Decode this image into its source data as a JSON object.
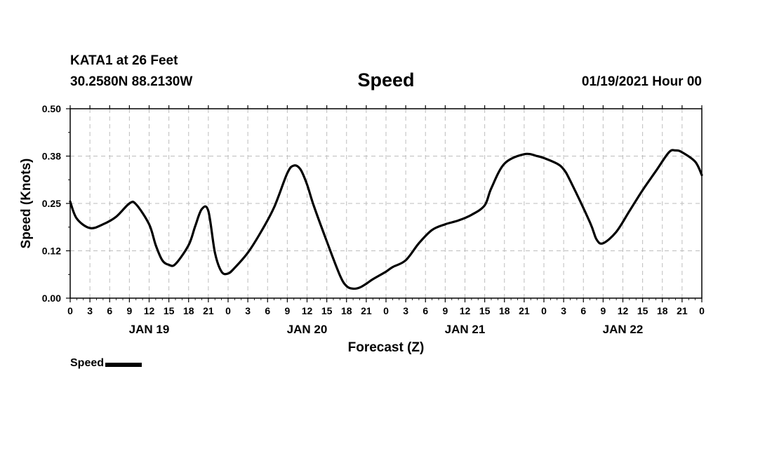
{
  "header": {
    "station": "KATA1 at 26 Feet",
    "coords": "30.2580N 88.2130W",
    "datetime": "01/19/2021 Hour 00"
  },
  "chart_data": {
    "type": "line",
    "title": "Speed",
    "xlabel": "Forecast (Z)",
    "ylabel": "Speed (Knots)",
    "ylim": [
      0,
      0.5
    ],
    "yticks": [
      "0.00",
      "0.12",
      "0.25",
      "0.38",
      "0.50"
    ],
    "xlim_hours": [
      0,
      96
    ],
    "xtick_labels": [
      "0",
      "3",
      "6",
      "9",
      "12",
      "15",
      "18",
      "21",
      "0",
      "3",
      "6",
      "9",
      "12",
      "15",
      "18",
      "21",
      "0",
      "3",
      "6",
      "9",
      "12",
      "15",
      "18",
      "21",
      "0",
      "3",
      "6",
      "9",
      "12",
      "15",
      "18",
      "21",
      "0"
    ],
    "day_labels": [
      "JAN 19",
      "JAN 20",
      "JAN 21",
      "JAN 22"
    ],
    "grid": true,
    "legend": "bottom-left",
    "series": [
      {
        "name": "Speed",
        "color": "#000000",
        "x_hours": [
          0,
          1,
          3,
          5,
          7,
          9,
          10,
          12,
          13,
          14,
          15,
          16,
          18,
          19,
          20,
          21,
          22,
          23,
          24,
          25,
          27,
          29,
          31,
          33,
          34,
          35,
          36,
          37,
          39,
          41,
          42,
          43,
          44,
          45,
          46,
          48,
          49,
          51,
          53,
          55,
          57,
          59,
          61,
          63,
          64,
          66,
          69,
          71,
          72,
          74,
          75,
          76,
          79,
          80,
          81,
          83,
          85,
          87,
          89,
          91,
          92,
          93,
          95,
          96
        ],
        "values": [
          0.255,
          0.21,
          0.185,
          0.195,
          0.215,
          0.25,
          0.248,
          0.195,
          0.14,
          0.1,
          0.088,
          0.09,
          0.14,
          0.19,
          0.235,
          0.23,
          0.12,
          0.07,
          0.065,
          0.08,
          0.12,
          0.175,
          0.24,
          0.33,
          0.35,
          0.34,
          0.3,
          0.245,
          0.15,
          0.06,
          0.032,
          0.025,
          0.028,
          0.038,
          0.05,
          0.07,
          0.082,
          0.1,
          0.145,
          0.18,
          0.195,
          0.205,
          0.22,
          0.245,
          0.29,
          0.355,
          0.38,
          0.375,
          0.37,
          0.355,
          0.34,
          0.31,
          0.2,
          0.155,
          0.145,
          0.175,
          0.23,
          0.285,
          0.335,
          0.385,
          0.39,
          0.385,
          0.36,
          0.325
        ]
      }
    ]
  }
}
